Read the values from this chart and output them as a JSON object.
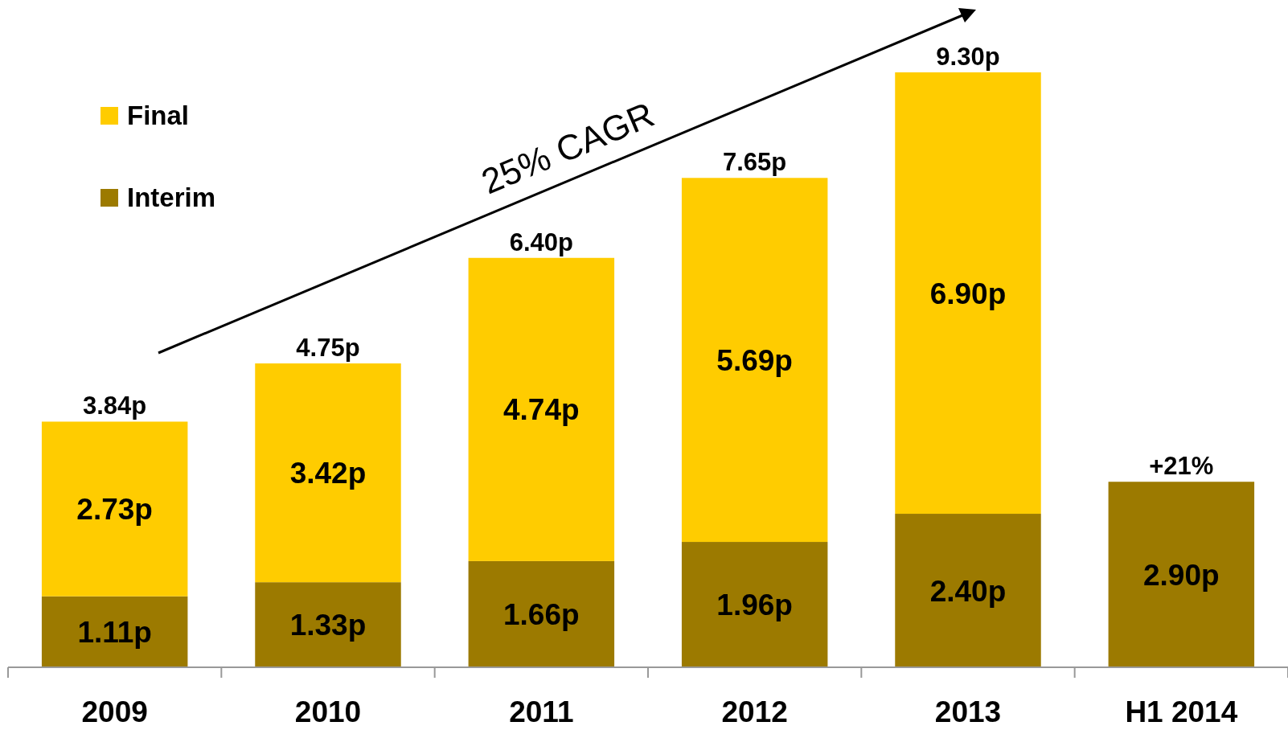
{
  "chart_data": {
    "type": "bar",
    "stacked": true,
    "categories": [
      "2009",
      "2010",
      "2011",
      "2012",
      "2013",
      "H1 2014"
    ],
    "series": [
      {
        "name": "Interim",
        "color": "#9c7a00",
        "values": [
          1.11,
          1.33,
          1.66,
          1.96,
          2.4,
          2.9
        ],
        "value_labels": [
          "1.11p",
          "1.33p",
          "1.66p",
          "1.96p",
          "2.40p",
          "2.90p"
        ]
      },
      {
        "name": "Final",
        "color": "#ffcc00",
        "values": [
          2.73,
          3.42,
          4.74,
          5.69,
          6.9,
          null
        ],
        "value_labels": [
          "2.73p",
          "3.42p",
          "4.74p",
          "5.69p",
          "6.90p",
          null
        ]
      }
    ],
    "totals": [
      "3.84p",
      "4.75p",
      "6.40p",
      "7.65p",
      "9.30p",
      null
    ],
    "legend": "top left",
    "annotations": [
      "25% CAGR",
      {
        "text": "+21%",
        "x": "H1 2014",
        "y": 2.9
      }
    ]
  }
}
